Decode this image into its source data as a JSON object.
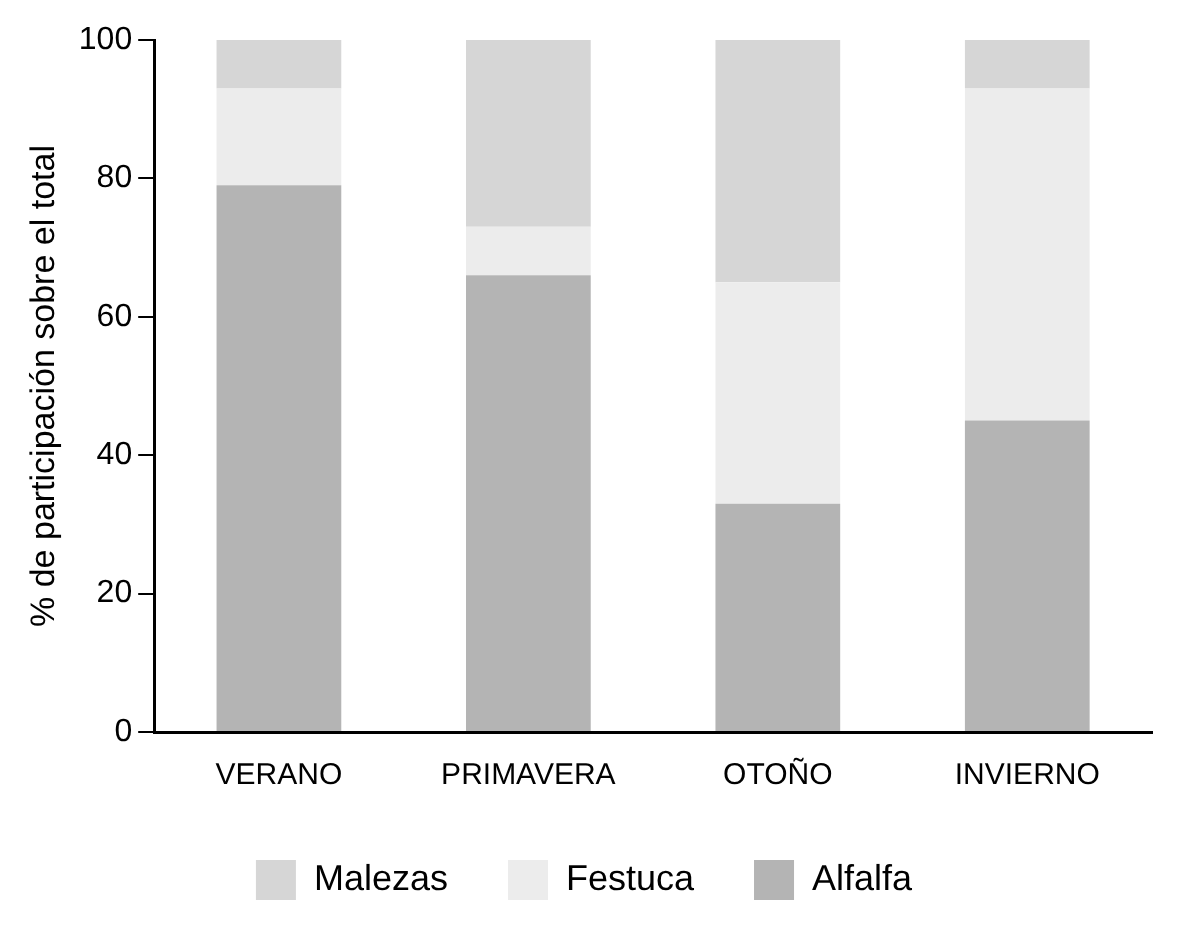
{
  "chart_data": {
    "type": "bar",
    "stacked": true,
    "ylabel": "% de participación sobre el total",
    "categories": [
      "VERANO",
      "PRIMAVERA",
      "OTOÑO",
      "INVIERNO"
    ],
    "series": [
      {
        "name": "Alfalfa",
        "color": "#b4b4b4",
        "values": [
          79,
          66,
          33,
          45
        ]
      },
      {
        "name": "Festuca",
        "color": "#ececec",
        "values": [
          14,
          7,
          32,
          48
        ]
      },
      {
        "name": "Malezas",
        "color": "#d6d6d6",
        "values": [
          7,
          27,
          35,
          7
        ]
      }
    ],
    "ylim": [
      0,
      100
    ],
    "yticks": [
      0,
      20,
      40,
      60,
      80,
      100
    ],
    "grid": false,
    "legend": "bottom"
  }
}
